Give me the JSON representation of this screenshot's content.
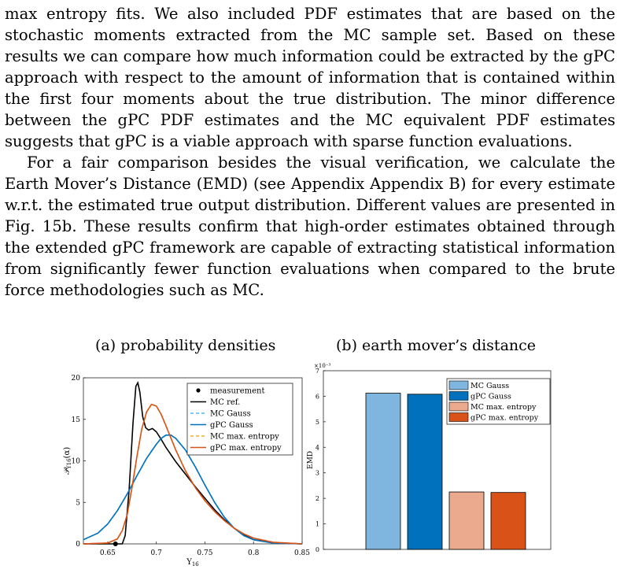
{
  "body_text": {
    "paragraph_1": "max entropy fits. We also included PDF estimates that are based on the stochastic moments extracted from the MC sample set. Based on these results we can compare how much information could be extracted by the gPC approach with respect to the amount of information that is contained within the first four moments about the true distribution. The minor difference between the gPC PDF estimates and the MC equivalent PDF estimates suggests that gPC is a viable approach with sparse function evaluations.",
    "paragraph_2": "For a fair comparison besides the visual verification, we calculate the Earth Mover’s Distance (EMD) (see Appendix Appendix B) for every estimate w.r.t. the estimated true output distribution. Different values are presented in Fig. 15b. These results confirm that high-order estimates obtained through the extended gPC framework are capable of extracting statistical information from significantly fewer function evaluations when compared to the brute force methodologies such as MC."
  },
  "figure": {
    "title_a": "(a) probability densities",
    "title_b": "(b) earth mover’s distance"
  },
  "colors": {
    "mc_ref": "#000000",
    "gauss": "#0072BD",
    "max_entropy": "#D95319",
    "mc_gauss_bar": "#7FB6E0",
    "gpc_gauss_bar": "#0072BD",
    "mc_maxent_bar": "#EBA98D",
    "gpc_maxent_bar": "#D95319"
  },
  "chart_data": [
    {
      "type": "line",
      "title": "(a) probability densities",
      "xlabel": "Y16",
      "ylabel": "P_Y16(α)",
      "xlim": [
        0.625,
        0.85
      ],
      "ylim": [
        0,
        20
      ],
      "x_ticks": [
        "0.65",
        "0.7",
        "0.75",
        "0.8",
        "0.85"
      ],
      "y_ticks": [
        "0",
        "5",
        "10",
        "15",
        "20"
      ],
      "legend_position": "top-right",
      "measurement": {
        "name": "measurement",
        "x": 0.658,
        "y": 0
      },
      "series": [
        {
          "name": "MC ref.",
          "style": "solid",
          "color": "#000000",
          "points": [
            [
              0.625,
              0
            ],
            [
              0.665,
              0
            ],
            [
              0.668,
              1.0
            ],
            [
              0.672,
              6.5
            ],
            [
              0.676,
              14.5
            ],
            [
              0.679,
              19.0
            ],
            [
              0.681,
              19.4
            ],
            [
              0.683,
              18.3
            ],
            [
              0.686,
              15.3
            ],
            [
              0.689,
              14.0
            ],
            [
              0.692,
              13.7
            ],
            [
              0.696,
              13.9
            ],
            [
              0.7,
              13.5
            ],
            [
              0.705,
              12.6
            ],
            [
              0.71,
              11.6
            ],
            [
              0.72,
              9.9
            ],
            [
              0.73,
              8.4
            ],
            [
              0.74,
              6.9
            ],
            [
              0.75,
              5.5
            ],
            [
              0.76,
              4.1
            ],
            [
              0.77,
              2.9
            ],
            [
              0.78,
              1.9
            ],
            [
              0.79,
              1.1
            ],
            [
              0.8,
              0.5
            ],
            [
              0.82,
              0.15
            ],
            [
              0.85,
              0
            ]
          ]
        },
        {
          "name": "MC Gauss",
          "style": "dashed",
          "color": "#4DBEEE",
          "points": [
            [
              0.625,
              0.5
            ],
            [
              0.64,
              1.3
            ],
            [
              0.65,
              2.4
            ],
            [
              0.66,
              4.0
            ],
            [
              0.67,
              6.0
            ],
            [
              0.68,
              8.2
            ],
            [
              0.69,
              10.3
            ],
            [
              0.7,
              12.0
            ],
            [
              0.705,
              12.7
            ],
            [
              0.71,
              13.1
            ],
            [
              0.715,
              13.1
            ],
            [
              0.72,
              12.7
            ],
            [
              0.73,
              11.3
            ],
            [
              0.74,
              9.3
            ],
            [
              0.75,
              7.1
            ],
            [
              0.76,
              5.0
            ],
            [
              0.77,
              3.2
            ],
            [
              0.78,
              1.9
            ],
            [
              0.79,
              1.0
            ],
            [
              0.8,
              0.5
            ],
            [
              0.82,
              0.1
            ],
            [
              0.85,
              0
            ]
          ]
        },
        {
          "name": "gPC Gauss",
          "style": "solid",
          "color": "#0072BD",
          "points": [
            [
              0.625,
              0.5
            ],
            [
              0.64,
              1.3
            ],
            [
              0.65,
              2.4
            ],
            [
              0.66,
              4.0
            ],
            [
              0.67,
              6.0
            ],
            [
              0.68,
              8.2
            ],
            [
              0.69,
              10.3
            ],
            [
              0.7,
              12.0
            ],
            [
              0.705,
              12.7
            ],
            [
              0.71,
              13.1
            ],
            [
              0.715,
              13.1
            ],
            [
              0.72,
              12.7
            ],
            [
              0.73,
              11.3
            ],
            [
              0.74,
              9.3
            ],
            [
              0.75,
              7.1
            ],
            [
              0.76,
              5.0
            ],
            [
              0.77,
              3.2
            ],
            [
              0.78,
              1.9
            ],
            [
              0.79,
              1.0
            ],
            [
              0.8,
              0.5
            ],
            [
              0.82,
              0.1
            ],
            [
              0.85,
              0
            ]
          ]
        },
        {
          "name": "MC max. entropy",
          "style": "dashed",
          "color": "#EDB120",
          "points": [
            [
              0.625,
              0
            ],
            [
              0.65,
              0.1
            ],
            [
              0.66,
              0.6
            ],
            [
              0.665,
              1.6
            ],
            [
              0.67,
              3.5
            ],
            [
              0.675,
              6.8
            ],
            [
              0.68,
              10.5
            ],
            [
              0.685,
              13.8
            ],
            [
              0.69,
              15.9
            ],
            [
              0.695,
              16.8
            ],
            [
              0.7,
              16.6
            ],
            [
              0.705,
              15.6
            ],
            [
              0.71,
              14.2
            ],
            [
              0.72,
              11.3
            ],
            [
              0.73,
              8.8
            ],
            [
              0.74,
              6.8
            ],
            [
              0.75,
              5.2
            ],
            [
              0.76,
              3.9
            ],
            [
              0.77,
              2.8
            ],
            [
              0.78,
              1.9
            ],
            [
              0.79,
              1.2
            ],
            [
              0.8,
              0.7
            ],
            [
              0.82,
              0.2
            ],
            [
              0.85,
              0
            ]
          ]
        },
        {
          "name": "gPC max. entropy",
          "style": "solid",
          "color": "#D95319",
          "points": [
            [
              0.625,
              0
            ],
            [
              0.65,
              0.1
            ],
            [
              0.66,
              0.6
            ],
            [
              0.665,
              1.6
            ],
            [
              0.67,
              3.5
            ],
            [
              0.675,
              6.8
            ],
            [
              0.68,
              10.5
            ],
            [
              0.685,
              13.8
            ],
            [
              0.69,
              15.9
            ],
            [
              0.695,
              16.8
            ],
            [
              0.7,
              16.6
            ],
            [
              0.705,
              15.6
            ],
            [
              0.71,
              14.2
            ],
            [
              0.72,
              11.3
            ],
            [
              0.73,
              8.8
            ],
            [
              0.74,
              6.8
            ],
            [
              0.75,
              5.2
            ],
            [
              0.76,
              3.9
            ],
            [
              0.77,
              2.8
            ],
            [
              0.78,
              1.9
            ],
            [
              0.79,
              1.2
            ],
            [
              0.8,
              0.7
            ],
            [
              0.82,
              0.2
            ],
            [
              0.85,
              0
            ]
          ]
        }
      ]
    },
    {
      "type": "bar",
      "title": "(b) earth mover’s distance",
      "ylabel": "EMD",
      "y_multiplier": "×10⁻³",
      "ylim": [
        0,
        7
      ],
      "y_ticks": [
        "0",
        "1",
        "2",
        "3",
        "4",
        "5",
        "6",
        "7"
      ],
      "legend_position": "top-right",
      "categories": [
        "MC Gauss",
        "gPC Gauss",
        "MC max. entropy",
        "gPC max. entropy"
      ],
      "values": [
        6.12,
        6.08,
        2.25,
        2.23
      ],
      "colors": [
        "#7FB6E0",
        "#0072BD",
        "#EBA98D",
        "#D95319"
      ]
    }
  ]
}
